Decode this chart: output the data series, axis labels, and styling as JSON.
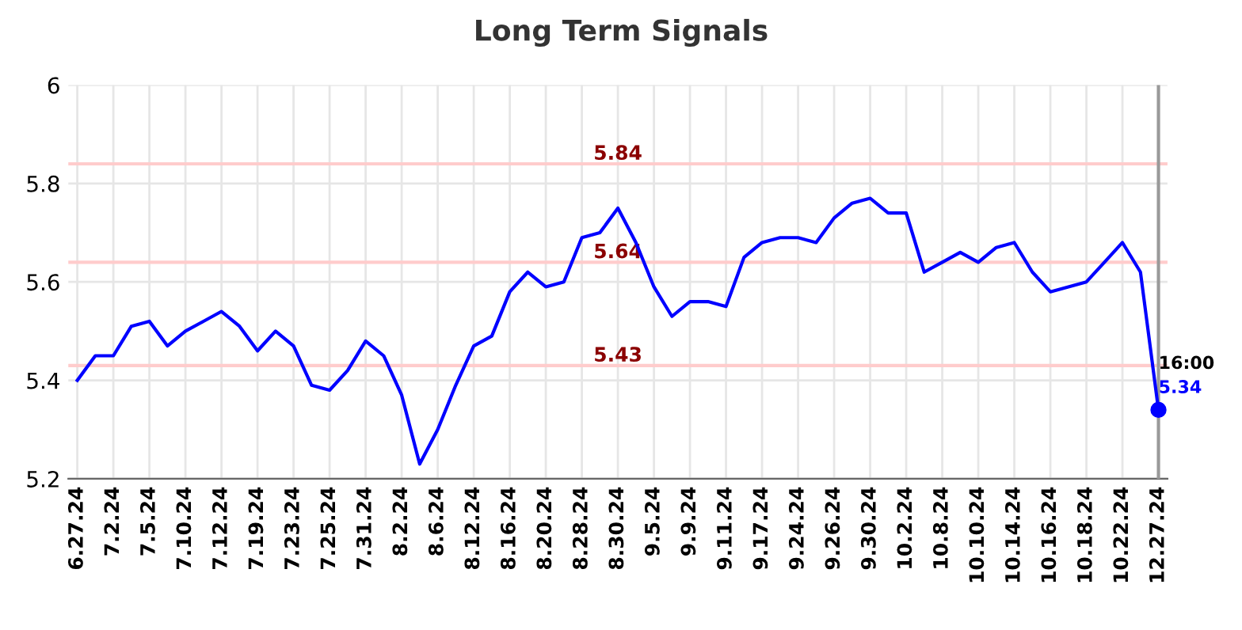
{
  "chart_data": {
    "type": "line",
    "title": "Long Term Signals",
    "categories": [
      "6.27.24",
      null,
      "7.2.24",
      null,
      "7.5.24",
      null,
      "7.10.24",
      null,
      "7.12.24",
      null,
      "7.19.24",
      null,
      "7.23.24",
      null,
      "7.25.24",
      null,
      "7.31.24",
      null,
      "8.2.24",
      null,
      "8.6.24",
      null,
      "8.12.24",
      null,
      "8.16.24",
      null,
      "8.20.24",
      null,
      "8.28.24",
      null,
      "8.30.24",
      null,
      "9.5.24",
      null,
      "9.9.24",
      null,
      "9.11.24",
      null,
      "9.17.24",
      null,
      "9.24.24",
      null,
      "9.26.24",
      null,
      "9.30.24",
      null,
      "10.2.24",
      null,
      "10.8.24",
      null,
      "10.10.24",
      null,
      "10.14.24",
      null,
      "10.16.24",
      null,
      "10.18.24",
      null,
      "10.22.24",
      null,
      "12.27.24"
    ],
    "series": [
      {
        "color": "#0000ff",
        "values": [
          5.4,
          5.45,
          5.45,
          5.51,
          5.52,
          5.47,
          5.5,
          5.52,
          5.54,
          5.51,
          5.46,
          5.5,
          5.47,
          5.39,
          5.38,
          5.42,
          5.48,
          5.45,
          5.37,
          5.23,
          5.3,
          5.39,
          5.47,
          5.49,
          5.58,
          5.62,
          5.59,
          5.6,
          5.69,
          5.7,
          5.75,
          5.68,
          5.59,
          5.53,
          5.56,
          5.56,
          5.55,
          5.65,
          5.68,
          5.69,
          5.69,
          5.68,
          5.73,
          5.76,
          5.77,
          5.74,
          5.74,
          5.62,
          5.64,
          5.66,
          5.64,
          5.67,
          5.68,
          5.62,
          5.58,
          5.59,
          5.6,
          5.64,
          5.68,
          5.62,
          5.34
        ]
      },
      {
        "type": "scatter",
        "marker": "circle",
        "color": "#0000ff",
        "x": [
          "12.27.24"
        ],
        "values": [
          5.34
        ],
        "value_labels": [
          "5.34"
        ]
      }
    ],
    "ylim": [
      5.2,
      6
    ],
    "yticks": [
      5.2,
      5.4,
      5.6,
      5.8,
      6
    ],
    "grid": true,
    "line_style": "solid",
    "ref_lines": [
      {
        "axis": "y",
        "value": 5.84,
        "label": "5.84",
        "color": "#ffcccc"
      },
      {
        "axis": "y",
        "value": 5.64,
        "label": "5.64",
        "color": "#ffcccc"
      },
      {
        "axis": "y",
        "value": 5.43,
        "label": "5.43",
        "color": "#ffcccc"
      },
      {
        "axis": "x",
        "value": "12.27.24",
        "color": "#999999"
      }
    ],
    "annotations": [
      {
        "text": "16:00",
        "x": "12.27.24",
        "y": 5.34
      }
    ]
  }
}
